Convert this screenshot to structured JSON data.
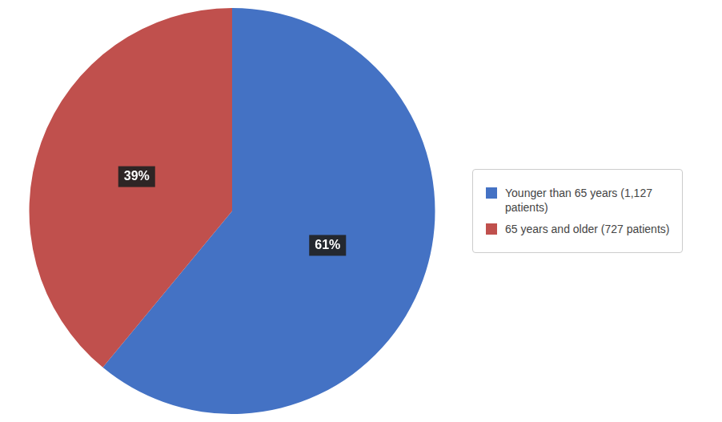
{
  "chart_data": {
    "type": "pie",
    "categories": [
      "Younger than 65 years (1,127\n  patients)",
      "65 years and older (727 patients)"
    ],
    "values": [
      61,
      39
    ],
    "value_labels": [
      "61%",
      "39%"
    ],
    "colors": [
      "#4472C4",
      "#C0504D"
    ],
    "data_labels": true,
    "legend": "right"
  }
}
